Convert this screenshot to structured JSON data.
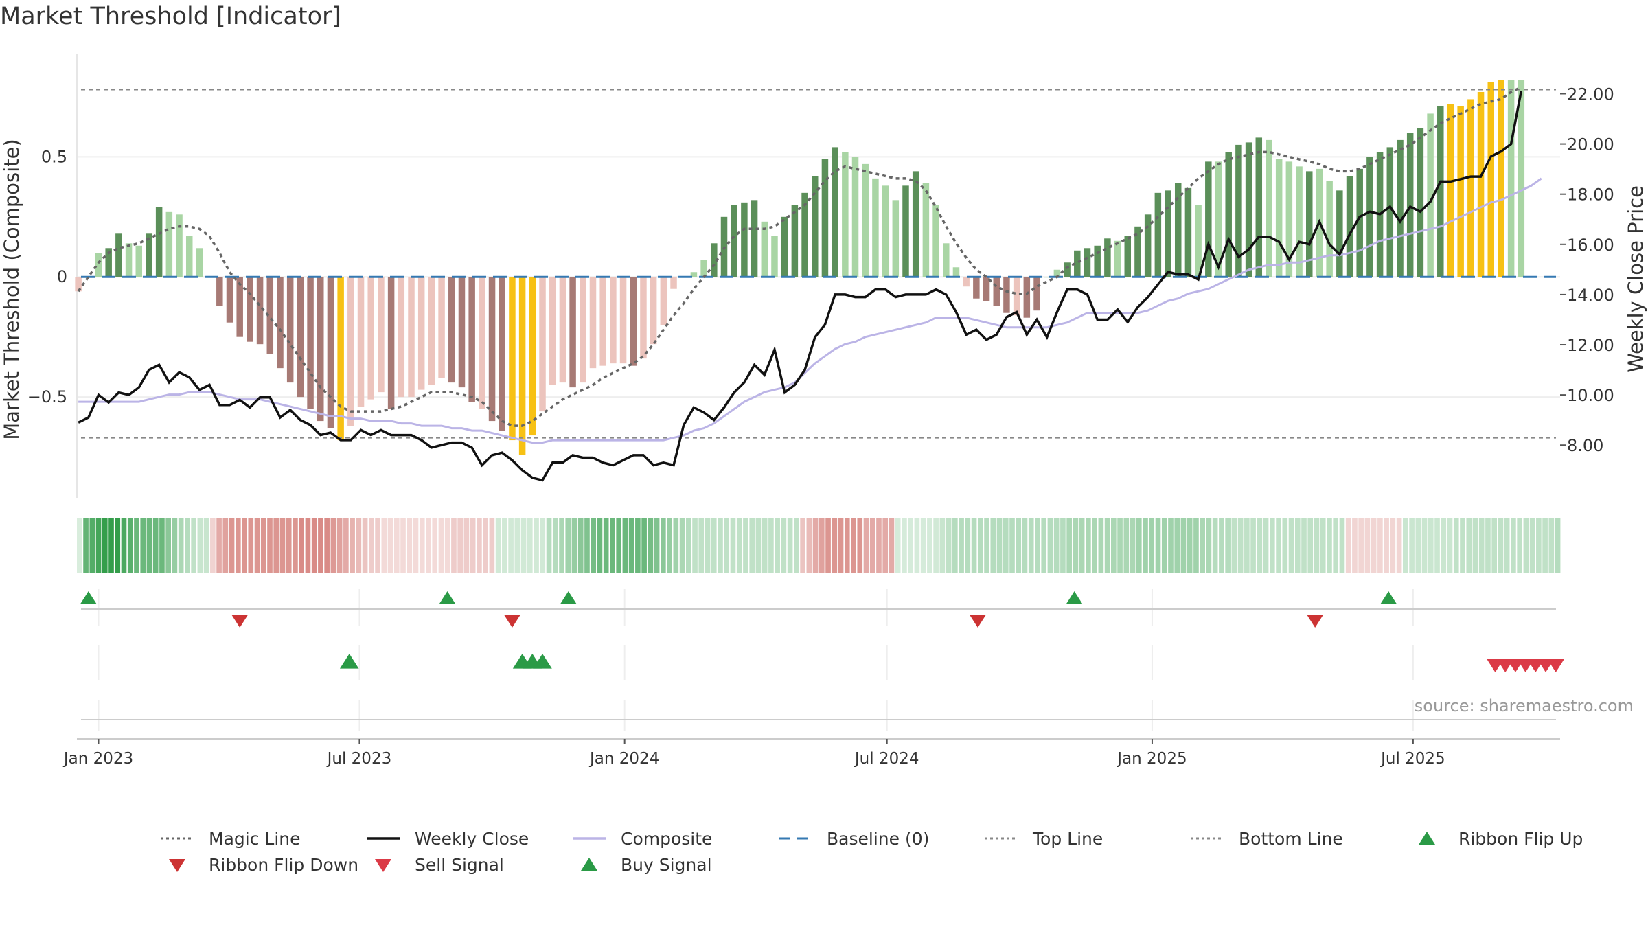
{
  "title": "Market Threshold [Indicator]",
  "source": "source: sharemaestro.com",
  "colors": {
    "strong_green": "#5b8f59",
    "light_green": "#a9d5a4",
    "strong_red": "#a77a75",
    "light_red": "#ecc4bd",
    "extreme": "#f7c114",
    "magic": "#666666",
    "close": "#111111",
    "composite": "#bbb4e6",
    "baseline": "#3579b2",
    "threshold": "#888888",
    "buy": "#2a9a46",
    "sell": "#db3a46",
    "flip_up": "#2a9a46",
    "flip_down": "#cc3333"
  },
  "legend": [
    {
      "label": "Magic Line",
      "key": "magic",
      "style": "dotted"
    },
    {
      "label": "Weekly Close",
      "key": "close",
      "style": "solid"
    },
    {
      "label": "Composite",
      "key": "composite",
      "style": "solid"
    },
    {
      "label": "Baseline (0)",
      "key": "baseline",
      "style": "dashed"
    },
    {
      "label": "Top Line",
      "key": "threshold",
      "style": "dotted"
    },
    {
      "label": "Bottom Line",
      "key": "threshold",
      "style": "dotted"
    },
    {
      "label": "Ribbon Flip Up",
      "key": "flip_up",
      "style": "up"
    },
    {
      "label": "Ribbon Flip Down",
      "key": "flip_down",
      "style": "down"
    },
    {
      "label": "Sell Signal",
      "key": "sell",
      "style": "down"
    },
    {
      "label": "Buy Signal",
      "key": "buy",
      "style": "up"
    }
  ],
  "chart_data": {
    "type": "bar",
    "title": "Market Threshold [Indicator]",
    "ylabel_left": "Market Threshold (Composite)",
    "ylabel_right": "Weekly Close Price",
    "y_left_ticks": [
      -0.5,
      0,
      0.5
    ],
    "y_left_tick_labels": [
      "−0.5",
      "0",
      "0.5"
    ],
    "y_right_ticks": [
      8,
      10,
      12,
      14,
      16,
      18,
      20,
      22
    ],
    "y_right_tick_labels": [
      "8.00",
      "10.00",
      "12.00",
      "14.00",
      "16.00",
      "18.00",
      "20.00",
      "22.00"
    ],
    "x_ticks": [
      "2023-01-01",
      "2023-07-01",
      "2024-01-01",
      "2024-07-01",
      "2025-01-01",
      "2025-07-01"
    ],
    "x_tick_labels": [
      "Jan 2023",
      "Jul 2023",
      "Jan 2024",
      "Jul 2024",
      "Jan 2025",
      "Jul 2025"
    ],
    "x_range": [
      "2022-12-17",
      "2025-10-11"
    ],
    "y_left_range": [
      -0.92,
      0.93
    ],
    "y_right_range": [
      5.9,
      23.6
    ],
    "start_date": "2022-12-18",
    "top_line": 0.78,
    "bottom_line": -0.67,
    "composite_bars": [
      -0.06,
      0.0,
      0.1,
      0.12,
      0.18,
      0.14,
      0.13,
      0.18,
      0.29,
      0.27,
      0.26,
      0.17,
      0.12,
      0.0,
      -0.12,
      -0.19,
      -0.25,
      -0.27,
      -0.28,
      -0.32,
      -0.38,
      -0.44,
      -0.5,
      -0.55,
      -0.6,
      -0.63,
      -0.68,
      -0.62,
      -0.54,
      -0.51,
      -0.48,
      -0.55,
      -0.5,
      -0.5,
      -0.47,
      -0.45,
      -0.42,
      -0.44,
      -0.46,
      -0.52,
      -0.55,
      -0.6,
      -0.64,
      -0.68,
      -0.74,
      -0.66,
      -0.56,
      -0.45,
      -0.44,
      -0.46,
      -0.44,
      -0.38,
      -0.37,
      -0.36,
      -0.36,
      -0.37,
      -0.34,
      -0.28,
      -0.2,
      -0.05,
      0.0,
      0.02,
      0.07,
      0.14,
      0.25,
      0.3,
      0.31,
      0.32,
      0.23,
      0.17,
      0.25,
      0.3,
      0.35,
      0.42,
      0.49,
      0.54,
      0.52,
      0.5,
      0.47,
      0.41,
      0.38,
      0.32,
      0.38,
      0.44,
      0.39,
      0.3,
      0.14,
      0.04,
      -0.04,
      -0.09,
      -0.1,
      -0.12,
      -0.15,
      -0.16,
      -0.17,
      -0.14,
      0.0,
      0.03,
      0.06,
      0.11,
      0.12,
      0.13,
      0.16,
      0.15,
      0.17,
      0.21,
      0.26,
      0.35,
      0.36,
      0.39,
      0.37,
      0.3,
      0.48,
      0.48,
      0.52,
      0.55,
      0.56,
      0.58,
      0.57,
      0.49,
      0.48,
      0.46,
      0.44,
      0.45,
      0.4,
      0.36,
      0.42,
      0.45,
      0.5,
      0.52,
      0.54,
      0.57,
      0.6,
      0.62,
      0.68,
      0.71,
      0.72,
      0.71,
      0.74,
      0.77,
      0.81,
      0.82,
      0.82,
      0.82
    ],
    "bar_class": [
      "LR",
      "SG",
      "LG",
      "SG",
      "SG",
      "LG",
      "LG",
      "SG",
      "SG",
      "LG",
      "LG",
      "LG",
      "LG",
      "LR",
      "SR",
      "SR",
      "SR",
      "SR",
      "SR",
      "SR",
      "SR",
      "SR",
      "SR",
      "SR",
      "SR",
      "SR",
      "EX",
      "LR",
      "LR",
      "LR",
      "LR",
      "SR",
      "LR",
      "LR",
      "LR",
      "LR",
      "LR",
      "SR",
      "SR",
      "SR",
      "LR",
      "SR",
      "SR",
      "EX",
      "EX",
      "EX",
      "LR",
      "LR",
      "LR",
      "SR",
      "LR",
      "LR",
      "LR",
      "LR",
      "LR",
      "SR",
      "LR",
      "LR",
      "LR",
      "LR",
      "LR",
      "LG",
      "LG",
      "SG",
      "SG",
      "SG",
      "SG",
      "SG",
      "LG",
      "LG",
      "SG",
      "SG",
      "SG",
      "SG",
      "SG",
      "SG",
      "LG",
      "LG",
      "LG",
      "LG",
      "LG",
      "LG",
      "SG",
      "SG",
      "LG",
      "LG",
      "LG",
      "LG",
      "LR",
      "SR",
      "SR",
      "SR",
      "SR",
      "LR",
      "SR",
      "SR",
      "LG",
      "LG",
      "SG",
      "SG",
      "SG",
      "SG",
      "SG",
      "LG",
      "SG",
      "SG",
      "SG",
      "SG",
      "SG",
      "SG",
      "SG",
      "LG",
      "SG",
      "LG",
      "SG",
      "SG",
      "SG",
      "SG",
      "LG",
      "LG",
      "LG",
      "LG",
      "SG",
      "LG",
      "LG",
      "SG",
      "SG",
      "SG",
      "SG",
      "SG",
      "SG",
      "SG",
      "SG",
      "SG",
      "LG",
      "SG",
      "EX",
      "EX",
      "EX",
      "EX",
      "EX",
      "EX"
    ],
    "magic_line": [
      -0.06,
      0.0,
      0.06,
      0.1,
      0.12,
      0.13,
      0.14,
      0.16,
      0.18,
      0.2,
      0.21,
      0.21,
      0.2,
      0.17,
      0.1,
      0.02,
      -0.03,
      -0.07,
      -0.12,
      -0.17,
      -0.22,
      -0.28,
      -0.34,
      -0.4,
      -0.46,
      -0.5,
      -0.54,
      -0.56,
      -0.56,
      -0.56,
      -0.56,
      -0.55,
      -0.54,
      -0.52,
      -0.5,
      -0.48,
      -0.48,
      -0.48,
      -0.49,
      -0.5,
      -0.52,
      -0.56,
      -0.6,
      -0.62,
      -0.62,
      -0.6,
      -0.57,
      -0.54,
      -0.51,
      -0.49,
      -0.47,
      -0.45,
      -0.42,
      -0.4,
      -0.38,
      -0.36,
      -0.33,
      -0.28,
      -0.22,
      -0.16,
      -0.11,
      -0.05,
      0.0,
      0.05,
      0.12,
      0.17,
      0.2,
      0.2,
      0.2,
      0.21,
      0.24,
      0.27,
      0.3,
      0.35,
      0.4,
      0.44,
      0.46,
      0.45,
      0.44,
      0.43,
      0.42,
      0.41,
      0.41,
      0.4,
      0.36,
      0.29,
      0.21,
      0.14,
      0.08,
      0.03,
      0.0,
      -0.04,
      -0.06,
      -0.07,
      -0.07,
      -0.04,
      -0.02,
      0.0,
      0.04,
      0.06,
      0.08,
      0.1,
      0.12,
      0.14,
      0.16,
      0.18,
      0.21,
      0.25,
      0.29,
      0.33,
      0.37,
      0.41,
      0.44,
      0.47,
      0.49,
      0.5,
      0.51,
      0.52,
      0.52,
      0.51,
      0.5,
      0.49,
      0.48,
      0.47,
      0.45,
      0.44,
      0.44,
      0.45,
      0.47,
      0.49,
      0.51,
      0.53,
      0.55,
      0.58,
      0.61,
      0.64,
      0.66,
      0.68,
      0.7,
      0.72,
      0.73,
      0.74,
      0.77,
      0.79
    ],
    "weekly_close": [
      8.9,
      9.1,
      10.0,
      9.7,
      10.1,
      10.0,
      10.3,
      11.0,
      11.2,
      10.5,
      10.9,
      10.7,
      10.2,
      10.4,
      9.6,
      9.6,
      9.8,
      9.5,
      9.9,
      9.9,
      9.1,
      9.4,
      9.0,
      8.8,
      8.4,
      8.5,
      8.2,
      8.2,
      8.6,
      8.4,
      8.6,
      8.4,
      8.4,
      8.4,
      8.2,
      7.9,
      8.0,
      8.1,
      8.1,
      7.9,
      7.2,
      7.6,
      7.7,
      7.4,
      7.0,
      6.7,
      6.6,
      7.3,
      7.3,
      7.6,
      7.5,
      7.5,
      7.3,
      7.2,
      7.4,
      7.6,
      7.6,
      7.2,
      7.3,
      7.2,
      8.8,
      9.5,
      9.3,
      9.0,
      9.5,
      10.1,
      10.5,
      11.2,
      10.8,
      11.8,
      10.1,
      10.4,
      11.0,
      12.3,
      12.8,
      14.0,
      14.0,
      13.9,
      13.9,
      14.2,
      14.2,
      13.9,
      14.0,
      14.0,
      14.0,
      14.2,
      14.0,
      13.3,
      12.4,
      12.6,
      12.2,
      12.4,
      13.1,
      13.3,
      12.4,
      13.0,
      12.3,
      13.3,
      14.2,
      14.2,
      14.0,
      13.0,
      13.0,
      13.4,
      12.9,
      13.5,
      13.9,
      14.4,
      14.9,
      14.8,
      14.8,
      14.6,
      16.0,
      15.1,
      16.2,
      15.5,
      15.8,
      16.3,
      16.3,
      16.1,
      15.4,
      16.1,
      16.0,
      16.9,
      16.0,
      15.6,
      16.4,
      17.1,
      17.3,
      17.2,
      17.5,
      16.9,
      17.5,
      17.3,
      17.7,
      18.5,
      18.5,
      18.6,
      18.7,
      18.7,
      19.5,
      19.7,
      20.0,
      22.1
    ],
    "composite_line": [
      -0.52,
      -0.52,
      -0.52,
      -0.52,
      -0.52,
      -0.52,
      -0.52,
      -0.51,
      -0.5,
      -0.49,
      -0.49,
      -0.48,
      -0.48,
      -0.48,
      -0.49,
      -0.5,
      -0.51,
      -0.51,
      -0.51,
      -0.52,
      -0.53,
      -0.54,
      -0.55,
      -0.56,
      -0.57,
      -0.58,
      -0.58,
      -0.59,
      -0.59,
      -0.6,
      -0.6,
      -0.6,
      -0.61,
      -0.61,
      -0.62,
      -0.62,
      -0.62,
      -0.63,
      -0.63,
      -0.64,
      -0.64,
      -0.65,
      -0.66,
      -0.67,
      -0.68,
      -0.69,
      -0.69,
      -0.68,
      -0.68,
      -0.68,
      -0.68,
      -0.68,
      -0.68,
      -0.68,
      -0.68,
      -0.68,
      -0.68,
      -0.68,
      -0.68,
      -0.67,
      -0.66,
      -0.64,
      -0.63,
      -0.61,
      -0.58,
      -0.55,
      -0.52,
      -0.5,
      -0.48,
      -0.47,
      -0.46,
      -0.44,
      -0.4,
      -0.36,
      -0.33,
      -0.3,
      -0.28,
      -0.27,
      -0.25,
      -0.24,
      -0.23,
      -0.22,
      -0.21,
      -0.2,
      -0.19,
      -0.17,
      -0.17,
      -0.17,
      -0.17,
      -0.18,
      -0.19,
      -0.2,
      -0.21,
      -0.21,
      -0.21,
      -0.21,
      -0.21,
      -0.2,
      -0.19,
      -0.17,
      -0.15,
      -0.15,
      -0.15,
      -0.15,
      -0.15,
      -0.15,
      -0.14,
      -0.12,
      -0.1,
      -0.09,
      -0.07,
      -0.06,
      -0.05,
      -0.03,
      -0.01,
      0.01,
      0.03,
      0.04,
      0.05,
      0.05,
      0.06,
      0.06,
      0.07,
      0.08,
      0.09,
      0.09,
      0.1,
      0.11,
      0.13,
      0.15,
      0.16,
      0.17,
      0.18,
      0.19,
      0.2,
      0.21,
      0.23,
      0.25,
      0.27,
      0.29,
      0.31,
      0.32,
      0.34,
      0.36,
      0.38,
      0.41
    ],
    "ribbon": [
      0.18,
      0.74,
      0.81,
      0.88,
      0.96,
      0.96,
      0.96,
      0.85,
      0.78,
      0.7,
      0.7,
      0.7,
      0.7,
      0.7,
      0.55,
      0.5,
      0.4,
      0.35,
      0.3,
      0.26,
      0.26,
      -0.26,
      -0.5,
      -0.55,
      -0.62,
      -0.62,
      -0.62,
      -0.62,
      -0.62,
      -0.62,
      -0.62,
      -0.62,
      -0.62,
      -0.62,
      -0.62,
      -0.68,
      -0.68,
      -0.68,
      -0.68,
      -0.68,
      -0.6,
      -0.55,
      -0.5,
      -0.45,
      -0.4,
      -0.35,
      -0.3,
      -0.3,
      -0.22,
      -0.22,
      -0.22,
      -0.22,
      -0.22,
      -0.22,
      -0.22,
      -0.22,
      -0.22,
      -0.22,
      -0.22,
      -0.3,
      -0.3,
      -0.3,
      -0.3,
      -0.3,
      -0.3,
      -0.3,
      0.22,
      0.22,
      0.22,
      0.22,
      0.22,
      0.22,
      0.22,
      0.22,
      0.35,
      0.35,
      0.4,
      0.45,
      0.5,
      0.55,
      0.6,
      0.65,
      0.7,
      0.7,
      0.7,
      0.7,
      0.7,
      0.7,
      0.7,
      0.7,
      0.65,
      0.6,
      0.55,
      0.5,
      0.45,
      0.4,
      0.35,
      0.3,
      0.3,
      0.3,
      0.3,
      0.3,
      0.3,
      0.3,
      0.3,
      0.3,
      0.3,
      0.3,
      0.3,
      0.3,
      0.3,
      0.3,
      0.3,
      0.3,
      -0.35,
      -0.4,
      -0.5,
      -0.55,
      -0.62,
      -0.62,
      -0.62,
      -0.62,
      -0.62,
      -0.62,
      -0.5,
      -0.5,
      -0.5,
      -0.5,
      -0.5,
      0.2,
      0.2,
      0.2,
      0.2,
      0.2,
      0.2,
      0.22,
      0.26,
      0.3,
      0.35,
      0.35,
      0.35,
      0.35,
      0.35,
      0.35,
      0.35,
      0.35,
      0.35,
      0.35,
      0.35,
      0.35,
      0.35,
      0.35,
      0.35,
      0.35,
      0.35,
      0.35,
      0.4,
      0.4,
      0.4,
      0.4,
      0.4,
      0.4,
      0.4,
      0.4,
      0.4,
      0.4,
      0.4,
      0.45,
      0.45,
      0.45,
      0.45,
      0.45,
      0.45,
      0.45,
      0.45,
      0.45,
      0.45,
      0.4,
      0.4,
      0.35,
      0.35,
      0.35,
      0.3,
      0.3,
      0.3,
      0.3,
      0.3,
      0.3,
      0.3,
      0.3,
      0.3,
      0.3,
      0.3,
      0.3,
      0.3,
      0.3,
      0.3,
      0.3,
      0.3,
      0.3,
      -0.25,
      -0.25,
      -0.25,
      -0.25,
      -0.25,
      -0.25,
      -0.25,
      -0.25,
      -0.25,
      0.25,
      0.25,
      0.25,
      0.25,
      0.25,
      0.25,
      0.25,
      0.25,
      0.3,
      0.3,
      0.3,
      0.3,
      0.3,
      0.3,
      0.3,
      0.3,
      0.3,
      0.3,
      0.3,
      0.3,
      0.3,
      0.3,
      0.3,
      0.3,
      0.35
    ],
    "flip_up_dates": [
      "2022-12-25",
      "2023-08-31",
      "2023-11-23",
      "2024-11-08",
      "2025-06-14"
    ],
    "flip_down_dates": [
      "2023-04-09",
      "2023-10-15",
      "2024-09-02",
      "2025-04-24"
    ],
    "buy_dates": [
      "2023-06-24",
      "2023-10-22",
      "2023-10-29",
      "2023-11-05"
    ],
    "sell_dates": [
      "2025-08-27",
      "2025-09-03",
      "2025-09-10",
      "2025-09-17",
      "2025-09-24",
      "2025-10-01",
      "2025-10-08"
    ]
  }
}
